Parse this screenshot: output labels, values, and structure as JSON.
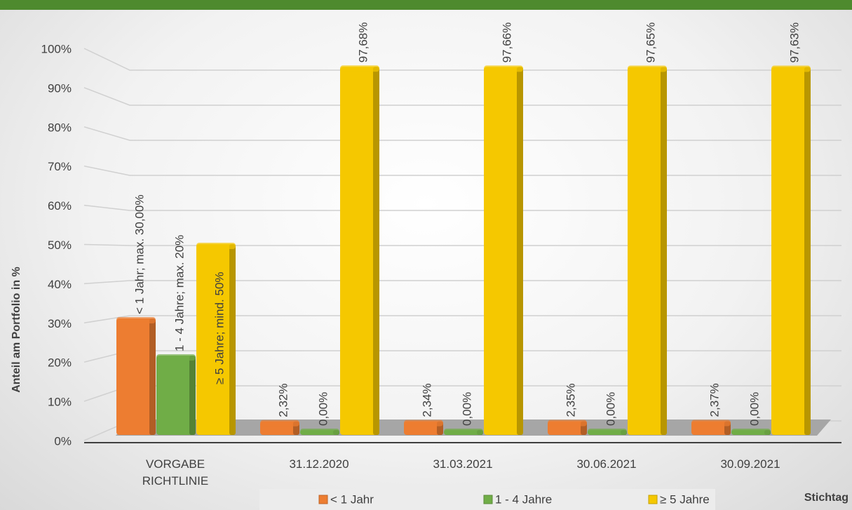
{
  "chart_data": {
    "type": "bar",
    "y_label": "Anteil am Portfolio in %",
    "x_label": "Stichtag",
    "categories": [
      "VORGABE RICHTLINIE",
      "31.12.2020",
      "31.03.2021",
      "30.06.2021",
      "30.09.2021"
    ],
    "series": [
      {
        "name": "< 1 Jahr",
        "color": "#ed7d31",
        "values": [
          30,
          2.32,
          2.34,
          2.35,
          2.37
        ],
        "value_labels": [
          "< 1 Jahr; max. 30,00%",
          "2,32%",
          "2,34%",
          "2,35%",
          "2,37%"
        ]
      },
      {
        "name": "1 - 4 Jahre",
        "color": "#70ad47",
        "values": [
          20,
          0,
          0,
          0,
          0
        ],
        "value_labels": [
          "1 - 4 Jahre; max. 20%",
          "0,00%",
          "0,00%",
          "0,00%",
          "0,00%"
        ]
      },
      {
        "name": "≥ 5 Jahre",
        "color": "#f5c800",
        "values": [
          50,
          97.68,
          97.66,
          97.65,
          97.63
        ],
        "value_labels": [
          "≥ 5 Jahre; mind. 50%",
          "97,68%",
          "97,66%",
          "97,65%",
          "97,63%"
        ]
      }
    ],
    "ylim": [
      0,
      100
    ],
    "yticks": [
      {
        "value": 0,
        "label": "0%"
      },
      {
        "value": 10,
        "label": "10%"
      },
      {
        "value": 20,
        "label": "20%"
      },
      {
        "value": 30,
        "label": "30%"
      },
      {
        "value": 40,
        "label": "40%"
      },
      {
        "value": 50,
        "label": "50%"
      },
      {
        "value": 60,
        "label": "60%"
      },
      {
        "value": 70,
        "label": "70%"
      },
      {
        "value": 80,
        "label": "80%"
      },
      {
        "value": 90,
        "label": "90%"
      },
      {
        "value": 100,
        "label": "100%"
      }
    ],
    "grid": true
  }
}
